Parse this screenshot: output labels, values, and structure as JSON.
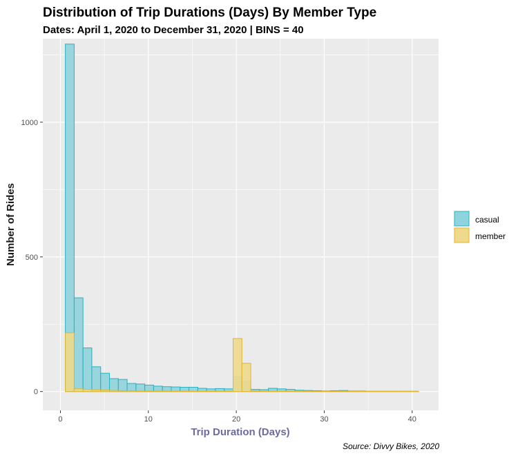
{
  "chart_data": {
    "type": "histogram",
    "title": "Distribution of Trip Durations (Days) By Member Type",
    "subtitle": "Dates: April 1, 2020 to December 31, 2020 | BINS = 40",
    "xlabel": "Trip Duration (Days)",
    "ylabel": "Number of Rides",
    "caption": "Source: Divvy Bikes, 2020",
    "xlim": [
      -2,
      43
    ],
    "ylim": [
      -70,
      1310
    ],
    "x_ticks": [
      0,
      10,
      20,
      30,
      40
    ],
    "y_ticks": [
      0,
      500,
      1000
    ],
    "grid": true,
    "legend_position": "right",
    "bins": 40,
    "bin_width": 1.004,
    "bin_start": 0.56,
    "series": [
      {
        "name": "casual",
        "fill": "#8fd3dc",
        "stroke": "#2ab0bf",
        "values": [
          1290,
          348,
          162,
          92,
          68,
          48,
          45,
          30,
          28,
          24,
          20,
          18,
          17,
          16,
          16,
          12,
          10,
          11,
          10,
          55,
          38,
          8,
          7,
          12,
          10,
          8,
          5,
          4,
          3,
          2,
          3,
          4,
          2,
          2,
          1,
          1,
          1,
          1,
          1,
          1
        ]
      },
      {
        "name": "member",
        "fill": "#eed98c",
        "stroke": "#e1b62b",
        "values": [
          218,
          10,
          8,
          6,
          5,
          4,
          3,
          3,
          2,
          2,
          2,
          2,
          1,
          1,
          1,
          1,
          1,
          1,
          1,
          197,
          105,
          2,
          1,
          1,
          1,
          1,
          1,
          1,
          1,
          1,
          1,
          1,
          1,
          1,
          1,
          1,
          1,
          1,
          1,
          1
        ]
      }
    ]
  },
  "colors": {
    "panel_background": "#ebebeb",
    "grid_major": "#ffffff",
    "xlabel_color": "#6b6b9f"
  }
}
